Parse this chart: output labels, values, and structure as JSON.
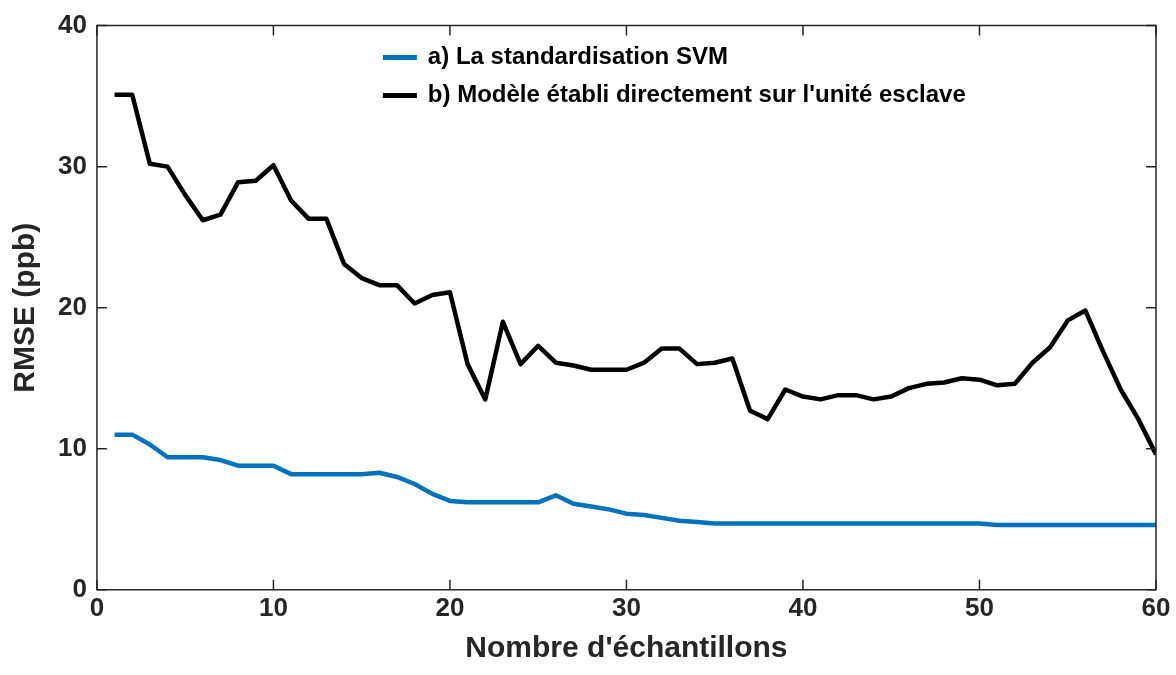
{
  "chart_data": {
    "type": "line",
    "xlabel": "Nombre d'échantillons",
    "ylabel": "RMSE (ppb)",
    "xlim": [
      0,
      60
    ],
    "xticks": [
      0,
      10,
      20,
      30,
      40,
      50,
      60
    ],
    "ylim": [
      0,
      40
    ],
    "yticks": [
      0,
      10,
      20,
      30,
      40
    ],
    "grid": false,
    "legend": "top",
    "marker": "none",
    "line_style": "solid",
    "x": [
      1,
      2,
      3,
      4,
      5,
      6,
      7,
      8,
      9,
      10,
      11,
      12,
      13,
      14,
      15,
      16,
      17,
      18,
      19,
      20,
      21,
      22,
      23,
      24,
      25,
      26,
      27,
      28,
      29,
      30,
      31,
      32,
      33,
      34,
      35,
      36,
      37,
      38,
      39,
      40,
      41,
      42,
      43,
      44,
      45,
      46,
      47,
      48,
      49,
      50,
      51,
      52,
      53,
      54,
      55,
      56,
      57,
      58,
      59,
      60
    ],
    "series": [
      {
        "name": "a) La standardisation SVM",
        "color": "#0072bd",
        "values": [
          11.0,
          11.0,
          10.3,
          9.4,
          9.4,
          9.4,
          9.2,
          8.8,
          8.8,
          8.8,
          8.2,
          8.2,
          8.2,
          8.2,
          8.2,
          8.3,
          8.0,
          7.5,
          6.8,
          6.3,
          6.2,
          6.2,
          6.2,
          6.2,
          6.2,
          6.7,
          6.1,
          5.9,
          5.7,
          5.4,
          5.3,
          5.1,
          4.9,
          4.8,
          4.7,
          4.7,
          4.7,
          4.7,
          4.7,
          4.7,
          4.7,
          4.7,
          4.7,
          4.7,
          4.7,
          4.7,
          4.7,
          4.7,
          4.7,
          4.7,
          4.6,
          4.6,
          4.6,
          4.6,
          4.6,
          4.6,
          4.6,
          4.6,
          4.6,
          4.6
        ]
      },
      {
        "name": "b) Modèle établi directement sur l'unité esclave",
        "color": "#000000",
        "values": [
          35.1,
          35.1,
          30.2,
          30.0,
          28.0,
          26.2,
          26.6,
          28.9,
          29.0,
          30.1,
          27.6,
          26.3,
          26.3,
          23.1,
          22.1,
          21.6,
          21.6,
          20.3,
          20.9,
          21.1,
          16.0,
          13.5,
          19.0,
          16.0,
          17.3,
          16.1,
          15.9,
          15.6,
          15.6,
          15.6,
          16.1,
          17.1,
          17.1,
          16.0,
          16.1,
          16.4,
          12.7,
          12.1,
          14.2,
          13.7,
          13.5,
          13.8,
          13.8,
          13.5,
          13.7,
          14.3,
          14.6,
          14.7,
          15.0,
          14.9,
          14.5,
          14.6,
          16.1,
          17.2,
          19.1,
          19.8,
          16.9,
          14.2,
          12.1,
          9.6
        ]
      }
    ]
  }
}
